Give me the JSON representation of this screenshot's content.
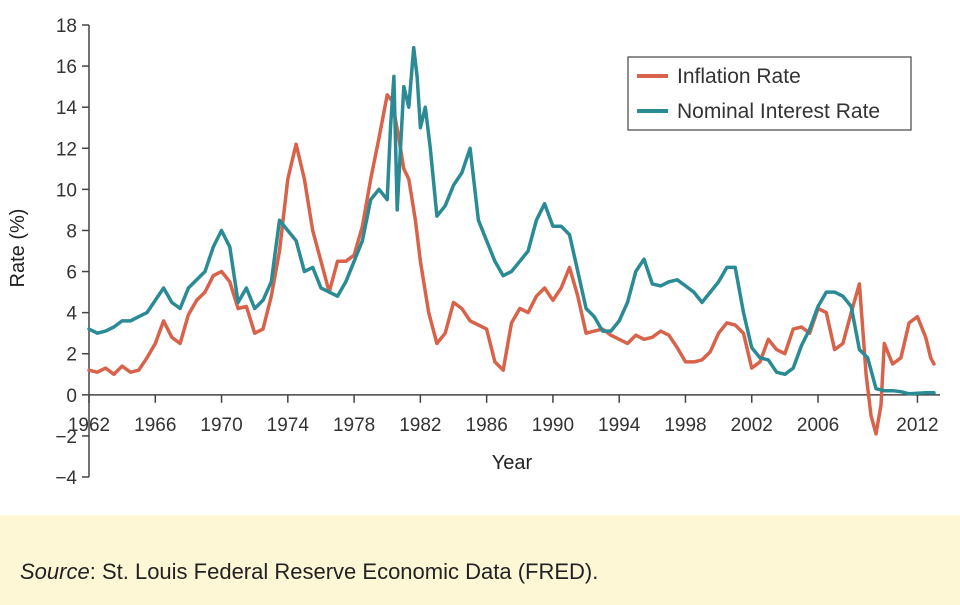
{
  "chart_data": {
    "type": "line",
    "xlabel": "Year",
    "ylabel": "Rate (%)",
    "xlim": [
      1962,
      2013
    ],
    "ylim": [
      -4,
      18
    ],
    "x_ticks": [
      1962,
      1966,
      1970,
      1974,
      1978,
      1982,
      1986,
      1990,
      1994,
      1998,
      2002,
      2006,
      2012
    ],
    "y_ticks": [
      -4,
      -2,
      0,
      2,
      4,
      6,
      8,
      10,
      12,
      14,
      16,
      18
    ],
    "y_tick_labels": [
      "−4",
      "−2",
      "0",
      "2",
      "4",
      "6",
      "8",
      "10",
      "12",
      "14",
      "16",
      "18"
    ],
    "grid": false,
    "legend": "top-right",
    "series": [
      {
        "name": "Inflation Rate",
        "color": "#d9634a",
        "points": [
          [
            1962.0,
            1.2
          ],
          [
            1962.5,
            1.1
          ],
          [
            1963.0,
            1.3
          ],
          [
            1963.5,
            1.0
          ],
          [
            1964.0,
            1.4
          ],
          [
            1964.5,
            1.1
          ],
          [
            1965.0,
            1.2
          ],
          [
            1965.5,
            1.8
          ],
          [
            1966.0,
            2.5
          ],
          [
            1966.5,
            3.6
          ],
          [
            1967.0,
            2.8
          ],
          [
            1967.5,
            2.5
          ],
          [
            1968.0,
            3.9
          ],
          [
            1968.5,
            4.6
          ],
          [
            1969.0,
            5.0
          ],
          [
            1969.5,
            5.8
          ],
          [
            1970.0,
            6.0
          ],
          [
            1970.5,
            5.5
          ],
          [
            1971.0,
            4.2
          ],
          [
            1971.5,
            4.3
          ],
          [
            1972.0,
            3.0
          ],
          [
            1972.5,
            3.2
          ],
          [
            1973.0,
            4.8
          ],
          [
            1973.5,
            7.0
          ],
          [
            1974.0,
            10.5
          ],
          [
            1974.5,
            12.2
          ],
          [
            1975.0,
            10.5
          ],
          [
            1975.5,
            8.0
          ],
          [
            1976.0,
            6.5
          ],
          [
            1976.5,
            5.0
          ],
          [
            1977.0,
            6.5
          ],
          [
            1977.5,
            6.5
          ],
          [
            1978.0,
            6.8
          ],
          [
            1978.5,
            8.2
          ],
          [
            1979.0,
            10.5
          ],
          [
            1979.5,
            12.5
          ],
          [
            1980.0,
            14.6
          ],
          [
            1980.3,
            14.3
          ],
          [
            1980.7,
            12.5
          ],
          [
            1981.0,
            11.0
          ],
          [
            1981.3,
            10.5
          ],
          [
            1981.7,
            8.5
          ],
          [
            1982.0,
            6.5
          ],
          [
            1982.5,
            4.0
          ],
          [
            1983.0,
            2.5
          ],
          [
            1983.5,
            3.0
          ],
          [
            1984.0,
            4.5
          ],
          [
            1984.5,
            4.2
          ],
          [
            1985.0,
            3.6
          ],
          [
            1985.5,
            3.4
          ],
          [
            1986.0,
            3.2
          ],
          [
            1986.5,
            1.6
          ],
          [
            1987.0,
            1.2
          ],
          [
            1987.5,
            3.5
          ],
          [
            1988.0,
            4.2
          ],
          [
            1988.5,
            4.0
          ],
          [
            1989.0,
            4.8
          ],
          [
            1989.5,
            5.2
          ],
          [
            1990.0,
            4.6
          ],
          [
            1990.5,
            5.2
          ],
          [
            1991.0,
            6.2
          ],
          [
            1991.5,
            4.8
          ],
          [
            1992.0,
            3.0
          ],
          [
            1992.5,
            3.1
          ],
          [
            1993.0,
            3.2
          ],
          [
            1993.5,
            2.9
          ],
          [
            1994.0,
            2.7
          ],
          [
            1994.5,
            2.5
          ],
          [
            1995.0,
            2.9
          ],
          [
            1995.5,
            2.7
          ],
          [
            1996.0,
            2.8
          ],
          [
            1996.5,
            3.1
          ],
          [
            1997.0,
            2.9
          ],
          [
            1997.5,
            2.3
          ],
          [
            1998.0,
            1.6
          ],
          [
            1998.5,
            1.6
          ],
          [
            1999.0,
            1.7
          ],
          [
            1999.5,
            2.1
          ],
          [
            2000.0,
            3.0
          ],
          [
            2000.5,
            3.5
          ],
          [
            2001.0,
            3.4
          ],
          [
            2001.5,
            3.0
          ],
          [
            2002.0,
            1.3
          ],
          [
            2002.5,
            1.6
          ],
          [
            2003.0,
            2.7
          ],
          [
            2003.5,
            2.2
          ],
          [
            2004.0,
            2.0
          ],
          [
            2004.5,
            3.2
          ],
          [
            2005.0,
            3.3
          ],
          [
            2005.5,
            3.0
          ],
          [
            2006.0,
            4.2
          ],
          [
            2006.5,
            4.0
          ],
          [
            2007.0,
            2.2
          ],
          [
            2007.5,
            2.5
          ],
          [
            2008.0,
            4.0
          ],
          [
            2008.5,
            5.4
          ],
          [
            2008.9,
            1.0
          ],
          [
            2009.2,
            -1.0
          ],
          [
            2009.5,
            -1.9
          ],
          [
            2009.8,
            -0.5
          ],
          [
            2010.0,
            2.5
          ],
          [
            2010.5,
            1.5
          ],
          [
            2011.0,
            1.8
          ],
          [
            2011.5,
            3.5
          ],
          [
            2012.0,
            3.8
          ],
          [
            2012.5,
            2.8
          ],
          [
            2012.8,
            1.8
          ],
          [
            2013.0,
            1.5
          ]
        ]
      },
      {
        "name": "Nominal Interest Rate",
        "color": "#2a8b95",
        "points": [
          [
            1962.0,
            3.2
          ],
          [
            1962.5,
            3.0
          ],
          [
            1963.0,
            3.1
          ],
          [
            1963.5,
            3.3
          ],
          [
            1964.0,
            3.6
          ],
          [
            1964.5,
            3.6
          ],
          [
            1965.0,
            3.8
          ],
          [
            1965.5,
            4.0
          ],
          [
            1966.0,
            4.6
          ],
          [
            1966.5,
            5.2
          ],
          [
            1967.0,
            4.5
          ],
          [
            1967.5,
            4.2
          ],
          [
            1968.0,
            5.2
          ],
          [
            1968.5,
            5.6
          ],
          [
            1969.0,
            6.0
          ],
          [
            1969.5,
            7.2
          ],
          [
            1970.0,
            8.0
          ],
          [
            1970.5,
            7.2
          ],
          [
            1971.0,
            4.5
          ],
          [
            1971.5,
            5.2
          ],
          [
            1972.0,
            4.2
          ],
          [
            1972.5,
            4.6
          ],
          [
            1973.0,
            5.5
          ],
          [
            1973.5,
            8.5
          ],
          [
            1974.0,
            8.0
          ],
          [
            1974.5,
            7.5
          ],
          [
            1975.0,
            6.0
          ],
          [
            1975.5,
            6.2
          ],
          [
            1976.0,
            5.2
          ],
          [
            1976.5,
            5.0
          ],
          [
            1977.0,
            4.8
          ],
          [
            1977.5,
            5.5
          ],
          [
            1978.0,
            6.5
          ],
          [
            1978.5,
            7.5
          ],
          [
            1979.0,
            9.5
          ],
          [
            1979.5,
            10.0
          ],
          [
            1980.0,
            9.5
          ],
          [
            1980.2,
            13.0
          ],
          [
            1980.4,
            15.5
          ],
          [
            1980.6,
            9.0
          ],
          [
            1980.8,
            12.0
          ],
          [
            1981.0,
            15.0
          ],
          [
            1981.3,
            14.0
          ],
          [
            1981.6,
            16.9
          ],
          [
            1981.8,
            15.5
          ],
          [
            1982.0,
            13.0
          ],
          [
            1982.3,
            14.0
          ],
          [
            1982.6,
            12.0
          ],
          [
            1983.0,
            8.7
          ],
          [
            1983.5,
            9.2
          ],
          [
            1984.0,
            10.2
          ],
          [
            1984.5,
            10.8
          ],
          [
            1985.0,
            12.0
          ],
          [
            1985.5,
            8.5
          ],
          [
            1986.0,
            7.5
          ],
          [
            1986.5,
            6.5
          ],
          [
            1987.0,
            5.8
          ],
          [
            1987.5,
            6.0
          ],
          [
            1988.0,
            6.5
          ],
          [
            1988.5,
            7.0
          ],
          [
            1989.0,
            8.5
          ],
          [
            1989.5,
            9.3
          ],
          [
            1990.0,
            8.2
          ],
          [
            1990.5,
            8.2
          ],
          [
            1991.0,
            7.8
          ],
          [
            1991.5,
            6.0
          ],
          [
            1992.0,
            4.2
          ],
          [
            1992.5,
            3.8
          ],
          [
            1993.0,
            3.1
          ],
          [
            1993.5,
            3.1
          ],
          [
            1994.0,
            3.6
          ],
          [
            1994.5,
            4.5
          ],
          [
            1995.0,
            6.0
          ],
          [
            1995.5,
            6.6
          ],
          [
            1996.0,
            5.4
          ],
          [
            1996.5,
            5.3
          ],
          [
            1997.0,
            5.5
          ],
          [
            1997.5,
            5.6
          ],
          [
            1998.0,
            5.3
          ],
          [
            1998.5,
            5.0
          ],
          [
            1999.0,
            4.5
          ],
          [
            1999.5,
            5.0
          ],
          [
            2000.0,
            5.5
          ],
          [
            2000.5,
            6.2
          ],
          [
            2001.0,
            6.2
          ],
          [
            2001.5,
            4.0
          ],
          [
            2002.0,
            2.3
          ],
          [
            2002.5,
            1.8
          ],
          [
            2003.0,
            1.7
          ],
          [
            2003.5,
            1.1
          ],
          [
            2004.0,
            1.0
          ],
          [
            2004.5,
            1.3
          ],
          [
            2005.0,
            2.4
          ],
          [
            2005.5,
            3.2
          ],
          [
            2006.0,
            4.3
          ],
          [
            2006.5,
            5.0
          ],
          [
            2007.0,
            5.0
          ],
          [
            2007.5,
            4.8
          ],
          [
            2008.0,
            4.3
          ],
          [
            2008.5,
            2.2
          ],
          [
            2009.0,
            1.8
          ],
          [
            2009.5,
            0.3
          ],
          [
            2010.0,
            0.2
          ],
          [
            2010.5,
            0.2
          ],
          [
            2011.0,
            0.15
          ],
          [
            2011.5,
            0.05
          ],
          [
            2012.0,
            0.08
          ],
          [
            2012.5,
            0.1
          ],
          [
            2013.0,
            0.1
          ]
        ]
      }
    ]
  },
  "source_note": {
    "label": "Source",
    "text": ": St. Louis Federal Reserve Economic Data (FRED)."
  }
}
